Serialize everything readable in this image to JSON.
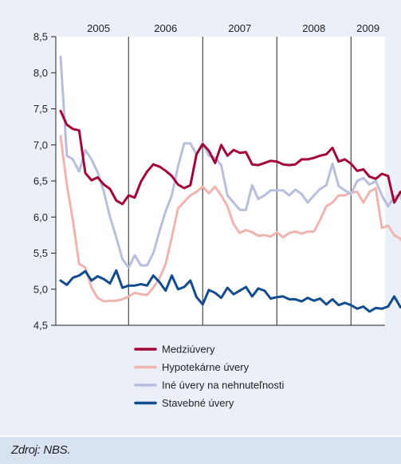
{
  "chart_data": {
    "type": "line",
    "title": "",
    "xlabel": "",
    "ylabel": "",
    "ylim": [
      4.5,
      8.5
    ],
    "yticks": [
      "8,5",
      "8,0",
      "7,5",
      "7,0",
      "6,5",
      "6,0",
      "5,5",
      "5,0",
      "4,5"
    ],
    "year_labels": [
      "2005",
      "2006",
      "2007",
      "2008",
      "2009"
    ],
    "year_boundaries": [
      "2005-12",
      "2006-12",
      "2007-12",
      "2008-12"
    ],
    "x_start": "2005-01",
    "x_end": "2009-05",
    "legend_position": "bottom",
    "series": [
      {
        "name": "Medziúvery",
        "color": "#a3053b",
        "values": [
          7.47,
          7.28,
          7.22,
          7.2,
          6.61,
          6.51,
          6.55,
          6.45,
          6.39,
          6.23,
          6.18,
          6.3,
          6.27,
          6.49,
          6.63,
          6.73,
          6.7,
          6.64,
          6.57,
          6.45,
          6.4,
          6.44,
          6.87,
          7.01,
          6.92,
          6.75,
          7.0,
          6.85,
          6.93,
          6.89,
          6.9,
          6.73,
          6.72,
          6.75,
          6.78,
          6.77,
          6.73,
          6.72,
          6.73,
          6.8,
          6.8,
          6.82,
          6.85,
          6.87,
          6.96,
          6.77,
          6.8,
          6.74,
          6.64,
          6.66,
          6.56,
          6.53,
          6.6,
          6.57,
          6.2,
          6.35,
          6.3,
          6.17
        ]
      },
      {
        "name": "Hypotekárne úvery",
        "color": "#f0b4b0",
        "values": [
          7.12,
          6.45,
          5.95,
          5.35,
          5.3,
          5.02,
          4.88,
          4.83,
          4.84,
          4.84,
          4.86,
          4.9,
          4.95,
          4.93,
          4.92,
          5.02,
          5.15,
          5.35,
          5.72,
          6.12,
          6.21,
          6.3,
          6.35,
          6.42,
          6.33,
          6.42,
          6.3,
          6.15,
          5.9,
          5.78,
          5.82,
          5.79,
          5.74,
          5.75,
          5.73,
          5.79,
          5.72,
          5.78,
          5.8,
          5.77,
          5.8,
          5.8,
          5.96,
          6.15,
          6.2,
          6.3,
          6.3,
          6.34,
          6.35,
          6.2,
          6.35,
          6.4,
          5.85,
          5.88,
          5.75,
          5.7,
          5.55
        ]
      },
      {
        "name": "Iné úvery na nehnuteľnosti",
        "color": "#b8bedd",
        "values": [
          8.22,
          6.85,
          6.8,
          6.63,
          6.93,
          6.8,
          6.62,
          6.35,
          6.0,
          5.72,
          5.42,
          5.3,
          5.47,
          5.33,
          5.33,
          5.5,
          5.8,
          6.08,
          6.3,
          6.7,
          7.02,
          7.02,
          6.87,
          7.03,
          6.85,
          6.82,
          6.72,
          6.3,
          6.2,
          6.1,
          6.1,
          6.44,
          6.25,
          6.3,
          6.37,
          6.37,
          6.37,
          6.3,
          6.38,
          6.32,
          6.2,
          6.3,
          6.39,
          6.44,
          6.74,
          6.43,
          6.37,
          6.32,
          6.5,
          6.54,
          6.45,
          6.5,
          6.3,
          6.15,
          6.28,
          6.31,
          6.0
        ]
      },
      {
        "name": "Stavebné úvery",
        "color": "#124b8e",
        "values": [
          5.12,
          5.06,
          5.16,
          5.19,
          5.25,
          5.12,
          5.18,
          5.14,
          5.08,
          5.26,
          5.02,
          5.05,
          5.05,
          5.07,
          5.05,
          5.19,
          5.1,
          4.98,
          5.19,
          5.0,
          5.03,
          5.12,
          4.89,
          4.79,
          4.99,
          4.95,
          4.88,
          5.02,
          4.93,
          4.98,
          5.03,
          4.9,
          5.01,
          4.98,
          4.87,
          4.89,
          4.9,
          4.86,
          4.86,
          4.83,
          4.88,
          4.84,
          4.87,
          4.79,
          4.86,
          4.78,
          4.81,
          4.78,
          4.73,
          4.76,
          4.69,
          4.74,
          4.73,
          4.76,
          4.9,
          4.75,
          4.81,
          4.83
        ]
      }
    ]
  },
  "source": {
    "text": "Zdroj: NBS."
  }
}
